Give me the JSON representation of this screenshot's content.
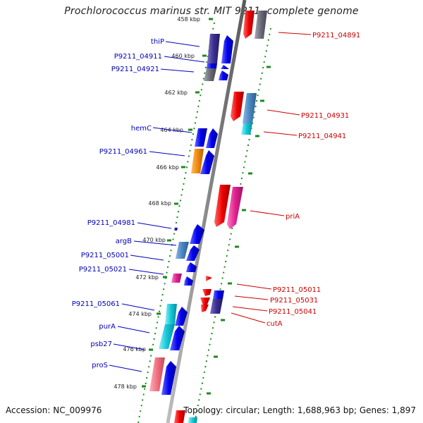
{
  "title": "Prochlorococcus marinus str. MIT 9211, complete genome",
  "footer": {
    "accession": "Accession: NC_009976",
    "summary": "Topology: circular; Length: 1,688,963 bp; Genes: 1,897"
  },
  "ticks": [
    {
      "label": "458 kbp",
      "kbp": 458
    },
    {
      "label": "460 kbp",
      "kbp": 460
    },
    {
      "label": "462 kbp",
      "kbp": 462
    },
    {
      "label": "464 kbp",
      "kbp": 464
    },
    {
      "label": "466 kbp",
      "kbp": 466
    },
    {
      "label": "468 kbp",
      "kbp": 468
    },
    {
      "label": "470 kbp",
      "kbp": 470
    },
    {
      "label": "472 kbp",
      "kbp": 472
    },
    {
      "label": "474 kbp",
      "kbp": 474
    },
    {
      "label": "476 kbp",
      "kbp": 476
    },
    {
      "label": "478 kbp",
      "kbp": 478
    }
  ],
  "gene_labels_left": [
    "thiP",
    "P9211_04911",
    "P9211_04921",
    "hemC",
    "P9211_04961",
    "P9211_04981",
    "argB",
    "P9211_05001",
    "P9211_05021",
    "P9211_05061",
    "purA",
    "psb27",
    "proS"
  ],
  "gene_labels_right": [
    "P9211_04891",
    "P9211_04931",
    "P9211_04941",
    "priA",
    "P9211_05011",
    "P9211_05031",
    "P9211_05041",
    "cutA"
  ],
  "colors": {
    "backbone": "#888888",
    "tick_mark": "#1d8a1d",
    "left_label": "#0000bb",
    "right_label": "#cc0000",
    "gene_blue": "#0000ee",
    "gene_red": "#ee0000",
    "gene_navy": "#3a2f8f",
    "gene_grey": "#6b6b78",
    "gene_steel": "#4a86c0",
    "gene_orange": "#f08a10",
    "gene_magenta": "#e02090",
    "gene_cyan": "#12c6d6",
    "gene_pink": "#f07080"
  }
}
